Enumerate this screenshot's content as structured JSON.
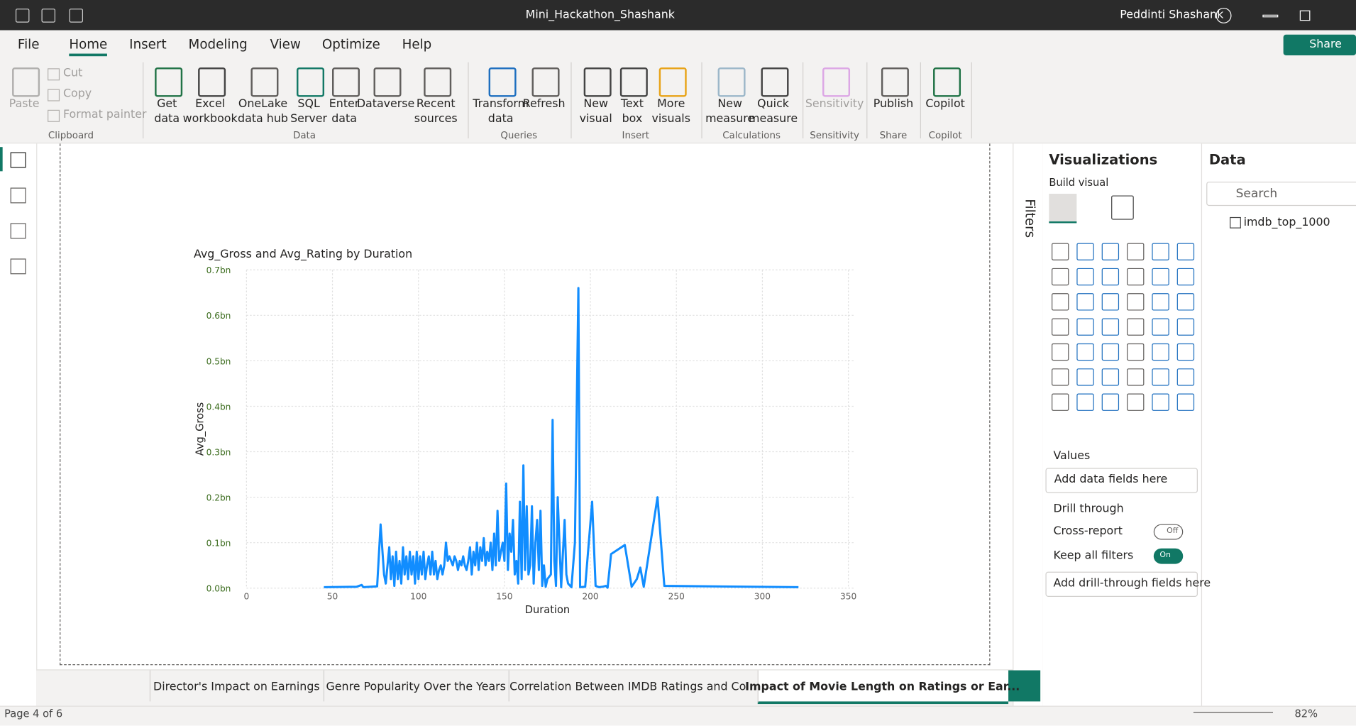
{
  "window": {
    "title": "Mini_Hackathon_Shashank",
    "user": "Peddinti Shashank",
    "share": "Share"
  },
  "menu": [
    "File",
    "Home",
    "Insert",
    "Modeling",
    "View",
    "Optimize",
    "Help"
  ],
  "ribbon": [
    {
      "name": "Clipboard",
      "buttons": [
        [
          "Paste"
        ],
        [
          "Cut"
        ],
        [
          "Copy"
        ],
        [
          "Format painter"
        ]
      ]
    },
    {
      "name": "Data",
      "buttons": [
        [
          "Get",
          "data"
        ],
        [
          "Excel",
          "workbook"
        ],
        [
          "OneLake",
          "data hub"
        ],
        [
          "SQL",
          "Server"
        ],
        [
          "Enter",
          "data"
        ],
        [
          "Dataverse"
        ],
        [
          "Recent",
          "sources"
        ]
      ]
    },
    {
      "name": "Queries",
      "buttons": [
        [
          "Transform",
          "data"
        ],
        [
          "Refresh"
        ]
      ]
    },
    {
      "name": "Insert",
      "buttons": [
        [
          "New",
          "visual"
        ],
        [
          "Text",
          "box"
        ],
        [
          "More",
          "visuals"
        ]
      ]
    },
    {
      "name": "Calculations",
      "buttons": [
        [
          "New",
          "measure"
        ],
        [
          "Quick",
          "measure"
        ]
      ]
    },
    {
      "name": "Sensitivity",
      "buttons": [
        [
          "Sensitivity"
        ]
      ]
    },
    {
      "name": "Share",
      "buttons": [
        [
          "Publish"
        ]
      ]
    },
    {
      "name": "Copilot",
      "buttons": [
        [
          "Copilot"
        ]
      ]
    }
  ],
  "filters": {
    "title": "Filters"
  },
  "visualizations": {
    "title": "Visualizations",
    "build": "Build visual",
    "values": "Values",
    "values_hint": "Add data fields here",
    "drill": "Drill through",
    "cross": "Cross-report",
    "cross_state": "Off",
    "keep": "Keep all filters",
    "keep_state": "On",
    "drill_hint": "Add drill-through fields here"
  },
  "data_pane": {
    "title": "Data",
    "search": "Search",
    "table": "imdb_top_1000"
  },
  "pages": [
    "Director's Impact on Earnings",
    "Genre Popularity Over the Years",
    "Correlation Between IMDB Ratings and Co...",
    "Impact of Movie Length on Ratings or Ear..."
  ],
  "status": {
    "page": "Page 4 of 6",
    "zoom": "82%"
  },
  "chart_data": {
    "type": "line",
    "title": "Avg_Gross and Avg_Rating by Duration",
    "x_label": "Duration",
    "y_label": "Avg_Gross",
    "color": "#118DFF",
    "grid": true,
    "xlim": [
      0,
      350
    ],
    "xticks": [
      0,
      50,
      100,
      150,
      200,
      250,
      300,
      350
    ],
    "ylim": [
      0,
      0.7
    ],
    "yticks": [
      {
        "value": 0,
        "label": "0.0bn"
      },
      {
        "value": 0.1,
        "label": "0.1bn"
      },
      {
        "value": 0.2,
        "label": "0.2bn"
      },
      {
        "value": 0.3,
        "label": "0.3bn"
      },
      {
        "value": 0.4,
        "label": "0.4bn"
      },
      {
        "value": 0.5,
        "label": "0.5bn"
      },
      {
        "value": 0.6,
        "label": "0.6bn"
      },
      {
        "value": 0.7,
        "label": "0.7bn"
      }
    ],
    "x": [
      45,
      64,
      67,
      68,
      72,
      76,
      78,
      80,
      81,
      83,
      84,
      85,
      86,
      87,
      88,
      89,
      90,
      91,
      92,
      93,
      94,
      95,
      96,
      97,
      98,
      99,
      100,
      101,
      102,
      103,
      104,
      105,
      106,
      107,
      108,
      109,
      110,
      111,
      112,
      113,
      114,
      115,
      116,
      117,
      118,
      119,
      120,
      121,
      122,
      123,
      124,
      125,
      126,
      127,
      128,
      129,
      130,
      131,
      132,
      133,
      134,
      135,
      136,
      137,
      138,
      139,
      140,
      141,
      142,
      143,
      144,
      145,
      146,
      147,
      148,
      149,
      150,
      151,
      152,
      153,
      154,
      155,
      156,
      157,
      158,
      159,
      160,
      161,
      162,
      163,
      164,
      165,
      166,
      167,
      168,
      169,
      170,
      171,
      172,
      173,
      174,
      175,
      177,
      178,
      179,
      180,
      181,
      183,
      185,
      186,
      187,
      189,
      191,
      193,
      194,
      197,
      201,
      203,
      205,
      207,
      209,
      210,
      212,
      220,
      224,
      227,
      229,
      231,
      239,
      243,
      321
    ],
    "values": [
      0.002,
      0.003,
      0.007,
      0.002,
      0.003,
      0.004,
      0.14,
      0.03,
      0.01,
      0.09,
      0.02,
      0.07,
      0.005,
      0.08,
      0.02,
      0.06,
      0.01,
      0.09,
      0.03,
      0.07,
      0.02,
      0.08,
      0.03,
      0.07,
      0.01,
      0.08,
      0.02,
      0.07,
      0.03,
      0.08,
      0.02,
      0.05,
      0.07,
      0.03,
      0.08,
      0.03,
      0.06,
      0.02,
      0.04,
      0.05,
      0.03,
      0.05,
      0.1,
      0.06,
      0.07,
      0.06,
      0.05,
      0.07,
      0.06,
      0.04,
      0.06,
      0.05,
      0.07,
      0.05,
      0.04,
      0.06,
      0.09,
      0.03,
      0.08,
      0.05,
      0.1,
      0.04,
      0.09,
      0.06,
      0.11,
      0.05,
      0.08,
      0.06,
      0.1,
      0.04,
      0.12,
      0.05,
      0.17,
      0.06,
      0.08,
      0.1,
      0.06,
      0.23,
      0.04,
      0.12,
      0.08,
      0.15,
      0.03,
      0.06,
      0.01,
      0.19,
      0.02,
      0.27,
      0.04,
      0.18,
      0.03,
      0.05,
      0.18,
      0.01,
      0.1,
      0.15,
      0.04,
      0.17,
      0.005,
      0.05,
      0.003,
      0.02,
      0.03,
      0.37,
      0.06,
      0.005,
      0.2,
      0.002,
      0.15,
      0.03,
      0.01,
      0.002,
      0.1,
      0.66,
      0.002,
      0.003,
      0.19,
      0.005,
      0.002,
      0.003,
      0.005,
      0.001,
      0.075,
      0.095,
      0.003,
      0.02,
      0.045,
      0.003,
      0.2,
      0.005,
      0.002
    ]
  }
}
